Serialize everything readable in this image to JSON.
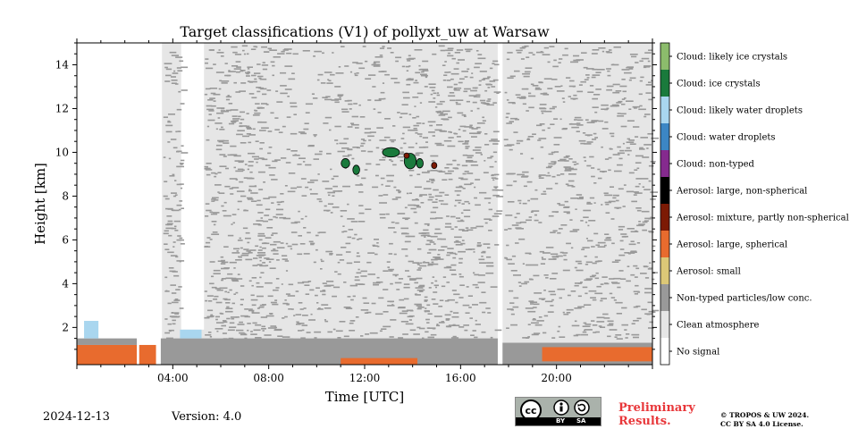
{
  "chart_data": {
    "type": "heatmap",
    "title": "Target classifications (V1) of pollyxt_uw at Warsaw",
    "xlabel": "Time [UTC]",
    "ylabel": "Height [km]",
    "x_range_hours": [
      0,
      24
    ],
    "y_range_km": [
      0.3,
      15
    ],
    "x_ticks": [
      {
        "value": 4,
        "label": "04:00"
      },
      {
        "value": 8,
        "label": "08:00"
      },
      {
        "value": 12,
        "label": "12:00"
      },
      {
        "value": 16,
        "label": "16:00"
      },
      {
        "value": 20,
        "label": "20:00"
      }
    ],
    "y_ticks": [
      {
        "value": 2,
        "label": "2"
      },
      {
        "value": 4,
        "label": "4"
      },
      {
        "value": 6,
        "label": "6"
      },
      {
        "value": 8,
        "label": "8"
      },
      {
        "value": 10,
        "label": "10"
      },
      {
        "value": 12,
        "label": "12"
      },
      {
        "value": 14,
        "label": "14"
      }
    ],
    "legend_placement": "right",
    "classes": [
      {
        "label": "Cloud: likely ice crystals",
        "color": "#8cbc6c"
      },
      {
        "label": "Cloud: ice crystals",
        "color": "#1a7a3c"
      },
      {
        "label": "Cloud: likely water droplets",
        "color": "#a9d6ef"
      },
      {
        "label": "Cloud: water droplets",
        "color": "#3c86c4"
      },
      {
        "label": "Cloud: non-typed",
        "color": "#852a8e"
      },
      {
        "label": "Aerosol: large, non-spherical",
        "color": "#000000"
      },
      {
        "label": "Aerosol: mixture, partly non-spherical",
        "color": "#7c1a04"
      },
      {
        "label": "Aerosol: large, spherical",
        "color": "#e86b2e"
      },
      {
        "label": "Aerosol: small",
        "color": "#dcc877"
      },
      {
        "label": "Non-typed particles/low conc.",
        "color": "#999999"
      },
      {
        "label": "Clean atmosphere",
        "color": "#e6e6e6"
      },
      {
        "label": "No signal",
        "color": "#ffffff"
      }
    ],
    "regions": [
      {
        "class": "Clean atmosphere",
        "t0": 3.55,
        "t1": 17.55,
        "h0": 0.3,
        "h1": 15
      },
      {
        "class": "Clean atmosphere",
        "t0": 17.75,
        "t1": 24,
        "h0": 0.3,
        "h1": 15
      },
      {
        "class": "No signal",
        "t0": 4.35,
        "t1": 5.3,
        "h0": 1.9,
        "h1": 15
      },
      {
        "class": "Non-typed particles/low conc.",
        "t0": 3.5,
        "t1": 17.55,
        "h0": 0.3,
        "h1": 1.5
      },
      {
        "class": "Non-typed particles/low conc.",
        "t0": 17.75,
        "t1": 24,
        "h0": 0.3,
        "h1": 1.3
      },
      {
        "class": "Aerosol: large, spherical",
        "t0": 0,
        "t1": 2.5,
        "h0": 0.3,
        "h1": 1.2
      },
      {
        "class": "Aerosol: large, spherical",
        "t0": 2.6,
        "t1": 3.3,
        "h0": 0.3,
        "h1": 1.2
      },
      {
        "class": "Aerosol: large, spherical",
        "t0": 19.4,
        "t1": 24,
        "h0": 0.45,
        "h1": 1.1
      },
      {
        "class": "Aerosol: large, spherical",
        "t0": 11.0,
        "t1": 14.2,
        "h0": 0.3,
        "h1": 0.6
      },
      {
        "class": "Non-typed particles/low conc.",
        "t0": 0,
        "t1": 2.5,
        "h0": 1.2,
        "h1": 1.5
      },
      {
        "class": "Cloud: likely water droplets",
        "t0": 0.3,
        "t1": 0.9,
        "h0": 1.5,
        "h1": 2.3
      },
      {
        "class": "Cloud: likely water droplets",
        "t0": 4.3,
        "t1": 5.2,
        "h0": 1.5,
        "h1": 1.9
      }
    ],
    "cloud_patches": [
      {
        "class": "Cloud: ice crystals",
        "t": 11.2,
        "h": 9.5,
        "dt": 0.25,
        "dh": 0.3
      },
      {
        "class": "Cloud: ice crystals",
        "t": 11.65,
        "h": 9.2,
        "dt": 0.2,
        "dh": 0.3
      },
      {
        "class": "Cloud: ice crystals",
        "t": 13.1,
        "h": 10.0,
        "dt": 0.5,
        "dh": 0.3
      },
      {
        "class": "Cloud: ice crystals",
        "t": 13.9,
        "h": 9.6,
        "dt": 0.35,
        "dh": 0.5
      },
      {
        "class": "Cloud: ice crystals",
        "t": 14.3,
        "h": 9.5,
        "dt": 0.2,
        "dh": 0.3
      },
      {
        "class": "Aerosol: mixture, partly non-spherical",
        "t": 14.9,
        "h": 9.4,
        "dt": 0.15,
        "dh": 0.2
      },
      {
        "class": "Aerosol: mixture, partly non-spherical",
        "t": 13.75,
        "h": 9.85,
        "dt": 0.12,
        "dh": 0.15
      }
    ]
  },
  "footer": {
    "date": "2024-12-13",
    "version": "Version: 4.0",
    "preliminary_line1": "Preliminary",
    "preliminary_line2": "Results.",
    "copyright_line1": "© TROPOS & UW 2024.",
    "copyright_line2": "CC BY SA 4.0 License.",
    "license_badge": {
      "cc": "cc",
      "by": "BY",
      "sa": "SA"
    }
  }
}
